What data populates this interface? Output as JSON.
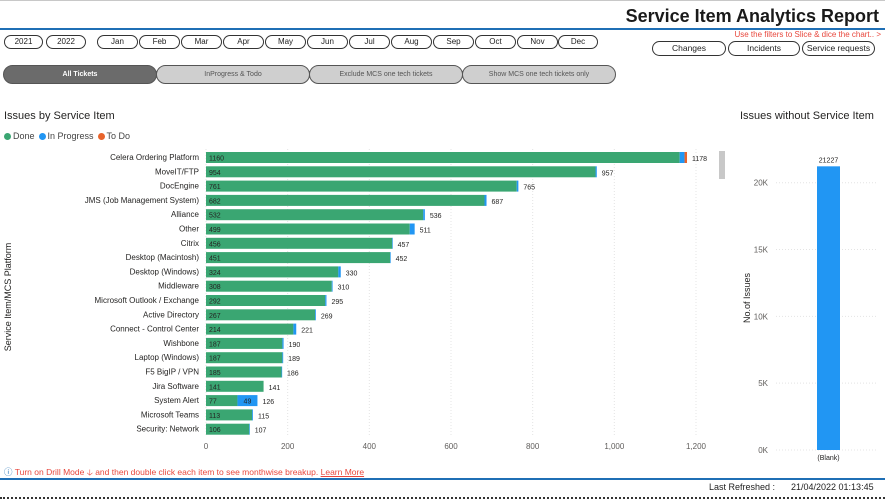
{
  "header": {
    "title": "Service Item Analytics Report",
    "filter_hint": "Use the filters to Slice & dice the chart.. >"
  },
  "filters": {
    "years": [
      "2021",
      "2022"
    ],
    "months": [
      "Jan",
      "Feb",
      "Mar",
      "Apr",
      "May",
      "Jun",
      "Jul",
      "Aug",
      "Sep",
      "Oct",
      "Nov",
      "Dec"
    ],
    "ticket_types": [
      "Changes",
      "Incidents",
      "Service requests"
    ]
  },
  "tabs": [
    {
      "label": "All Tickets",
      "active": true
    },
    {
      "label": "InProgress & Todo",
      "active": false
    },
    {
      "label": "Exclude MCS one tech tickets",
      "active": false
    },
    {
      "label": "Show MCS one tech tickets only",
      "active": false
    }
  ],
  "colors": {
    "done": "#3aa672",
    "in_progress": "#2196f3",
    "to_do": "#e8642c",
    "accent": "#1f6fb5"
  },
  "chart_data": [
    {
      "type": "bar",
      "orientation": "horizontal",
      "stacked": true,
      "title": "Issues by Service Item",
      "ylabel": "Service Item/MCS Platform",
      "xlabel": "",
      "xlim": [
        0,
        1200
      ],
      "x_ticks": [
        "0",
        "200",
        "400",
        "600",
        "800",
        "1,000",
        "1,200"
      ],
      "legend": [
        "Done",
        "In Progress",
        "To Do"
      ],
      "legend_position": "top-left",
      "categories": [
        "Celera Ordering Platform",
        "MoveIT/FTP",
        "DocEngine",
        "JMS (Job Management System)",
        "Alliance",
        "Other",
        "Citrix",
        "Desktop (Macintosh)",
        "Desktop (Windows)",
        "Middleware",
        "Microsoft Outlook / Exchange",
        "Active Directory",
        "Connect - Control Center",
        "Wishbone",
        "Laptop (Windows)",
        "F5 BigIP / VPN",
        "Jira Software",
        "System Alert",
        "Microsoft Teams",
        "Security: Network"
      ],
      "series": [
        {
          "name": "Done",
          "values": [
            1160,
            954,
            761,
            682,
            532,
            499,
            456,
            451,
            324,
            308,
            292,
            267,
            214,
            187,
            187,
            185,
            141,
            77,
            113,
            106
          ]
        },
        {
          "name": "In Progress",
          "values": [
            12,
            3,
            4,
            5,
            4,
            12,
            1,
            1,
            6,
            2,
            3,
            2,
            7,
            3,
            2,
            1,
            0,
            49,
            2,
            1
          ]
        },
        {
          "name": "To Do",
          "values": [
            6,
            0,
            0,
            0,
            0,
            0,
            0,
            0,
            0,
            0,
            0,
            0,
            0,
            0,
            0,
            0,
            0,
            0,
            0,
            0
          ]
        }
      ],
      "done_labels": [
        "1160",
        "954",
        "761",
        "682",
        "532",
        "499",
        "456",
        "451",
        "324",
        "308",
        "292",
        "267",
        "214",
        "187",
        "187",
        "185",
        "141",
        "77",
        "113",
        "106"
      ],
      "in_progress_labels": [
        "",
        "",
        "",
        "",
        "",
        "",
        "",
        "",
        "",
        "",
        "",
        "",
        "",
        "",
        "",
        "",
        "",
        "49",
        "",
        ""
      ],
      "total_labels": [
        "1178",
        "957",
        "765",
        "687",
        "536",
        "511",
        "457",
        "452",
        "330",
        "310",
        "295",
        "269",
        "221",
        "190",
        "189",
        "186",
        "141",
        "126",
        "115",
        "107"
      ],
      "grid": true
    },
    {
      "type": "bar",
      "title": "Issues without Service Item",
      "ylabel": "No.of Issues",
      "xlabel": "",
      "categories": [
        "(Blank)"
      ],
      "values": [
        21227
      ],
      "value_labels": [
        "21227"
      ],
      "ylim": [
        0,
        22000
      ],
      "y_ticks": [
        {
          "value": 0,
          "label": "0K"
        },
        {
          "value": 5000,
          "label": "5K"
        },
        {
          "value": 10000,
          "label": "10K"
        },
        {
          "value": 15000,
          "label": "15K"
        },
        {
          "value": 20000,
          "label": "20K"
        }
      ],
      "grid": true
    }
  ],
  "footer": {
    "drill_text": "Turn on Drill Mode",
    "drill_text_2": "and then double click each item to see monthwise breakup.",
    "learn_more": "Learn More",
    "refresh_label": "Last Refreshed :",
    "refresh_value": "21/04/2022 01:13:45"
  }
}
